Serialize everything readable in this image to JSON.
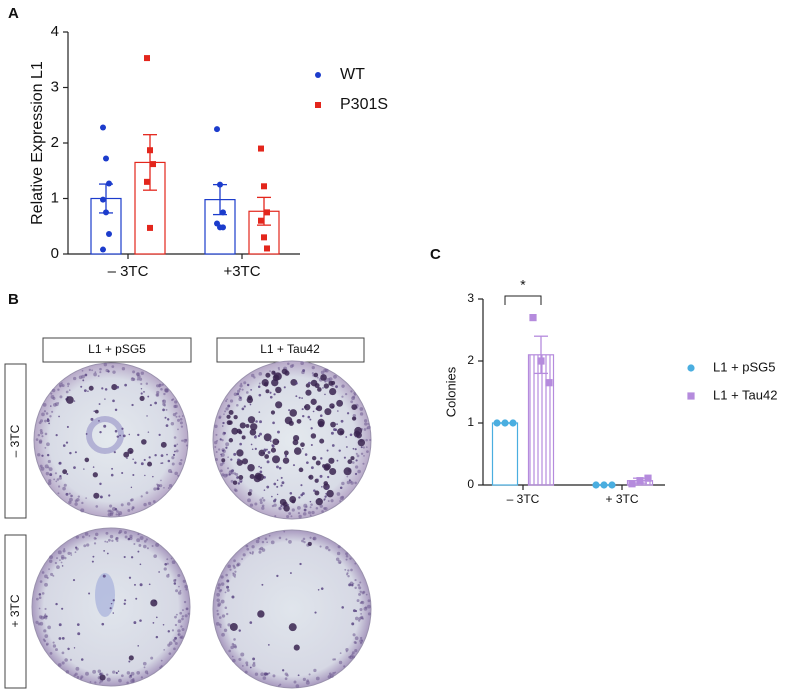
{
  "chart_data": [
    {
      "type": "bar",
      "panel_label": "A",
      "ylabel": "Relative Expression L1",
      "categories": [
        "– 3TC",
        "+3TC"
      ],
      "ylim": [
        0,
        4
      ],
      "yticks": [
        0,
        1,
        2,
        3,
        4
      ],
      "series": [
        {
          "name": "WT",
          "color": "#1c3ccc",
          "marker": "circle",
          "values": [
            1.0,
            0.98
          ],
          "errors": [
            0.26,
            0.27
          ],
          "points": [
            [
              2.28,
              1.72,
              1.27,
              0.98,
              0.75,
              0.36,
              0.08
            ],
            [
              2.25,
              1.25,
              0.75,
              0.55,
              0.48,
              0.48
            ]
          ]
        },
        {
          "name": "P301S",
          "color": "#e3261c",
          "marker": "square",
          "values": [
            1.65,
            0.77
          ],
          "errors": [
            0.5,
            0.25
          ],
          "points": [
            [
              3.53,
              1.87,
              1.62,
              1.3,
              0.47
            ],
            [
              1.9,
              1.22,
              0.75,
              0.6,
              0.3,
              0.1
            ]
          ]
        }
      ]
    },
    {
      "type": "bar",
      "panel_label": "C",
      "ylabel": "Colonies",
      "categories": [
        "– 3TC",
        "+ 3TC"
      ],
      "ylim": [
        0,
        3
      ],
      "yticks": [
        0,
        1,
        2,
        3
      ],
      "annotation": "*",
      "series": [
        {
          "name": "L1 + pSG5",
          "color": "#4aaee0",
          "marker": "circle",
          "hatch": false,
          "values": [
            1.0,
            0
          ],
          "errors": [
            0,
            0
          ],
          "points": [
            [
              1,
              1,
              1
            ],
            [
              0,
              0,
              0
            ]
          ]
        },
        {
          "name": "L1 + Tau42",
          "color": "#b58bdd",
          "marker": "square",
          "hatch": true,
          "values": [
            2.1,
            0.07
          ],
          "errors": [
            0.3,
            0.04
          ],
          "points": [
            [
              2.7,
              2.0,
              1.65
            ],
            [
              0.02,
              0.07,
              0.11
            ]
          ]
        }
      ]
    }
  ],
  "panel_b": {
    "panel_label": "B",
    "columns": [
      "L1 + pSG5",
      "L1 + Tau42"
    ],
    "rows": [
      "– 3TC",
      "+ 3TC"
    ]
  }
}
